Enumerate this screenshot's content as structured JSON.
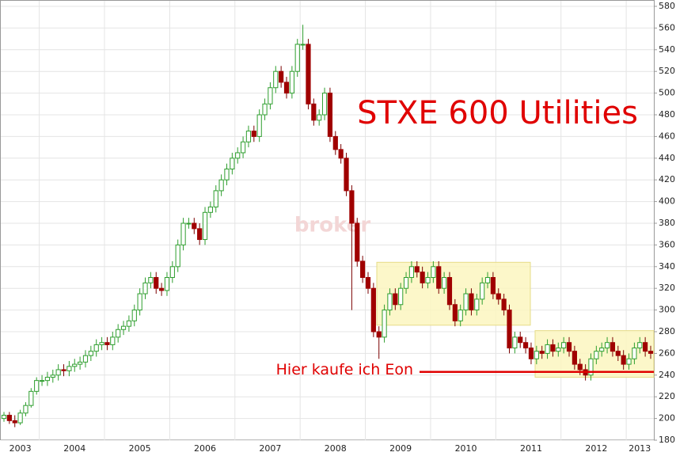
{
  "chart_data": {
    "type": "candlestick",
    "title": "STXE 600 Utilities",
    "watermark": "broker",
    "categories": [
      null,
      null,
      null,
      "2003",
      null,
      null,
      null,
      null,
      null,
      null,
      null,
      null,
      null,
      "2004",
      null,
      null,
      null,
      null,
      null,
      null,
      null,
      null,
      null,
      null,
      null,
      "2005",
      null,
      null,
      null,
      null,
      null,
      null,
      null,
      null,
      null,
      null,
      null,
      "2006",
      null,
      null,
      null,
      null,
      null,
      null,
      null,
      null,
      null,
      null,
      null,
      "2007",
      null,
      null,
      null,
      null,
      null,
      null,
      null,
      null,
      null,
      null,
      null,
      "2008",
      null,
      null,
      null,
      null,
      null,
      null,
      null,
      null,
      null,
      null,
      null,
      "2009",
      null,
      null,
      null,
      null,
      null,
      null,
      null,
      null,
      null,
      null,
      null,
      "2010",
      null,
      null,
      null,
      null,
      null,
      null,
      null,
      null,
      null,
      null,
      null,
      "2011",
      null,
      null,
      null,
      null,
      null,
      null,
      null,
      null,
      null,
      null,
      null,
      "2012",
      null,
      null,
      null,
      null,
      null,
      null,
      null,
      "2013",
      null,
      null
    ],
    "open": [
      200,
      203,
      198,
      196,
      205,
      212,
      225,
      235,
      235,
      238,
      240,
      245,
      244,
      248,
      250,
      252,
      258,
      262,
      268,
      270,
      268,
      275,
      282,
      285,
      290,
      300,
      315,
      325,
      330,
      320,
      318,
      330,
      340,
      360,
      380,
      380,
      375,
      365,
      390,
      395,
      410,
      420,
      430,
      440,
      445,
      455,
      465,
      460,
      480,
      490,
      505,
      520,
      510,
      500,
      520,
      545,
      545,
      490,
      475,
      480,
      500,
      460,
      448,
      440,
      410,
      380,
      345,
      330,
      320,
      280,
      275,
      300,
      315,
      305,
      320,
      330,
      340,
      335,
      325,
      330,
      340,
      320,
      330,
      305,
      290,
      300,
      315,
      300,
      310,
      325,
      330,
      315,
      310,
      300,
      265,
      275,
      270,
      265,
      255,
      262,
      260,
      268,
      262,
      265,
      270,
      262,
      250,
      245,
      240,
      255,
      262,
      265,
      270,
      262,
      258,
      250,
      255,
      265,
      270,
      262
    ],
    "close": [
      203,
      198,
      196,
      205,
      212,
      225,
      235,
      235,
      238,
      240,
      245,
      244,
      248,
      250,
      252,
      258,
      262,
      268,
      270,
      268,
      275,
      282,
      285,
      290,
      300,
      315,
      325,
      330,
      320,
      318,
      330,
      340,
      360,
      380,
      380,
      375,
      365,
      390,
      395,
      410,
      420,
      430,
      440,
      445,
      455,
      465,
      460,
      480,
      490,
      505,
      520,
      510,
      500,
      520,
      545,
      545,
      490,
      475,
      480,
      500,
      460,
      448,
      440,
      410,
      380,
      345,
      330,
      320,
      280,
      275,
      300,
      315,
      305,
      320,
      330,
      340,
      335,
      325,
      330,
      340,
      320,
      330,
      305,
      290,
      300,
      315,
      300,
      310,
      325,
      330,
      315,
      310,
      300,
      265,
      275,
      270,
      265,
      255,
      262,
      260,
      268,
      262,
      265,
      270,
      262,
      250,
      245,
      240,
      255,
      262,
      265,
      270,
      262,
      258,
      250,
      255,
      265,
      270,
      262,
      260
    ],
    "high": [
      206,
      206,
      203,
      208,
      215,
      228,
      238,
      240,
      243,
      245,
      250,
      250,
      253,
      255,
      257,
      263,
      267,
      273,
      275,
      275,
      280,
      287,
      290,
      295,
      305,
      320,
      330,
      335,
      335,
      325,
      335,
      345,
      365,
      385,
      385,
      385,
      380,
      395,
      400,
      415,
      425,
      435,
      445,
      450,
      460,
      470,
      470,
      485,
      495,
      510,
      525,
      525,
      515,
      525,
      550,
      563,
      550,
      495,
      485,
      505,
      505,
      465,
      453,
      445,
      415,
      385,
      350,
      335,
      325,
      285,
      305,
      320,
      320,
      325,
      335,
      345,
      345,
      340,
      335,
      345,
      345,
      335,
      335,
      310,
      305,
      320,
      320,
      315,
      330,
      335,
      335,
      320,
      315,
      305,
      280,
      280,
      275,
      270,
      267,
      267,
      273,
      273,
      270,
      275,
      275,
      267,
      255,
      250,
      260,
      267,
      270,
      275,
      275,
      267,
      263,
      260,
      270,
      275,
      275,
      267
    ],
    "low": [
      197,
      195,
      192,
      194,
      202,
      210,
      222,
      230,
      230,
      233,
      235,
      239,
      239,
      243,
      245,
      247,
      253,
      257,
      263,
      263,
      263,
      270,
      277,
      280,
      285,
      295,
      310,
      320,
      315,
      313,
      313,
      325,
      335,
      355,
      375,
      370,
      360,
      360,
      385,
      390,
      405,
      415,
      425,
      435,
      440,
      450,
      455,
      455,
      475,
      485,
      500,
      505,
      495,
      495,
      515,
      540,
      485,
      470,
      470,
      475,
      455,
      443,
      435,
      405,
      300,
      340,
      325,
      315,
      275,
      255,
      270,
      295,
      300,
      300,
      315,
      325,
      330,
      320,
      320,
      325,
      315,
      315,
      300,
      285,
      285,
      295,
      295,
      295,
      305,
      320,
      310,
      305,
      295,
      260,
      260,
      265,
      260,
      250,
      250,
      255,
      255,
      257,
      257,
      260,
      257,
      245,
      240,
      235,
      235,
      250,
      257,
      260,
      257,
      253,
      245,
      245,
      250,
      260,
      257,
      255
    ],
    "up_color": "#2e9e2e",
    "down_color": "#a00000",
    "ranges": [
      {
        "low": 286,
        "high": 344
      },
      {
        "low": 238,
        "high": 281
      }
    ],
    "annotation": {
      "text": "Hier kaufe ich Eon",
      "value": 243
    },
    "ylim": [
      180,
      580
    ],
    "yticks": [
      180,
      200,
      220,
      240,
      260,
      280,
      300,
      320,
      340,
      360,
      380,
      400,
      420,
      440,
      460,
      480,
      500,
      520,
      540,
      560,
      580
    ],
    "grid": true
  }
}
